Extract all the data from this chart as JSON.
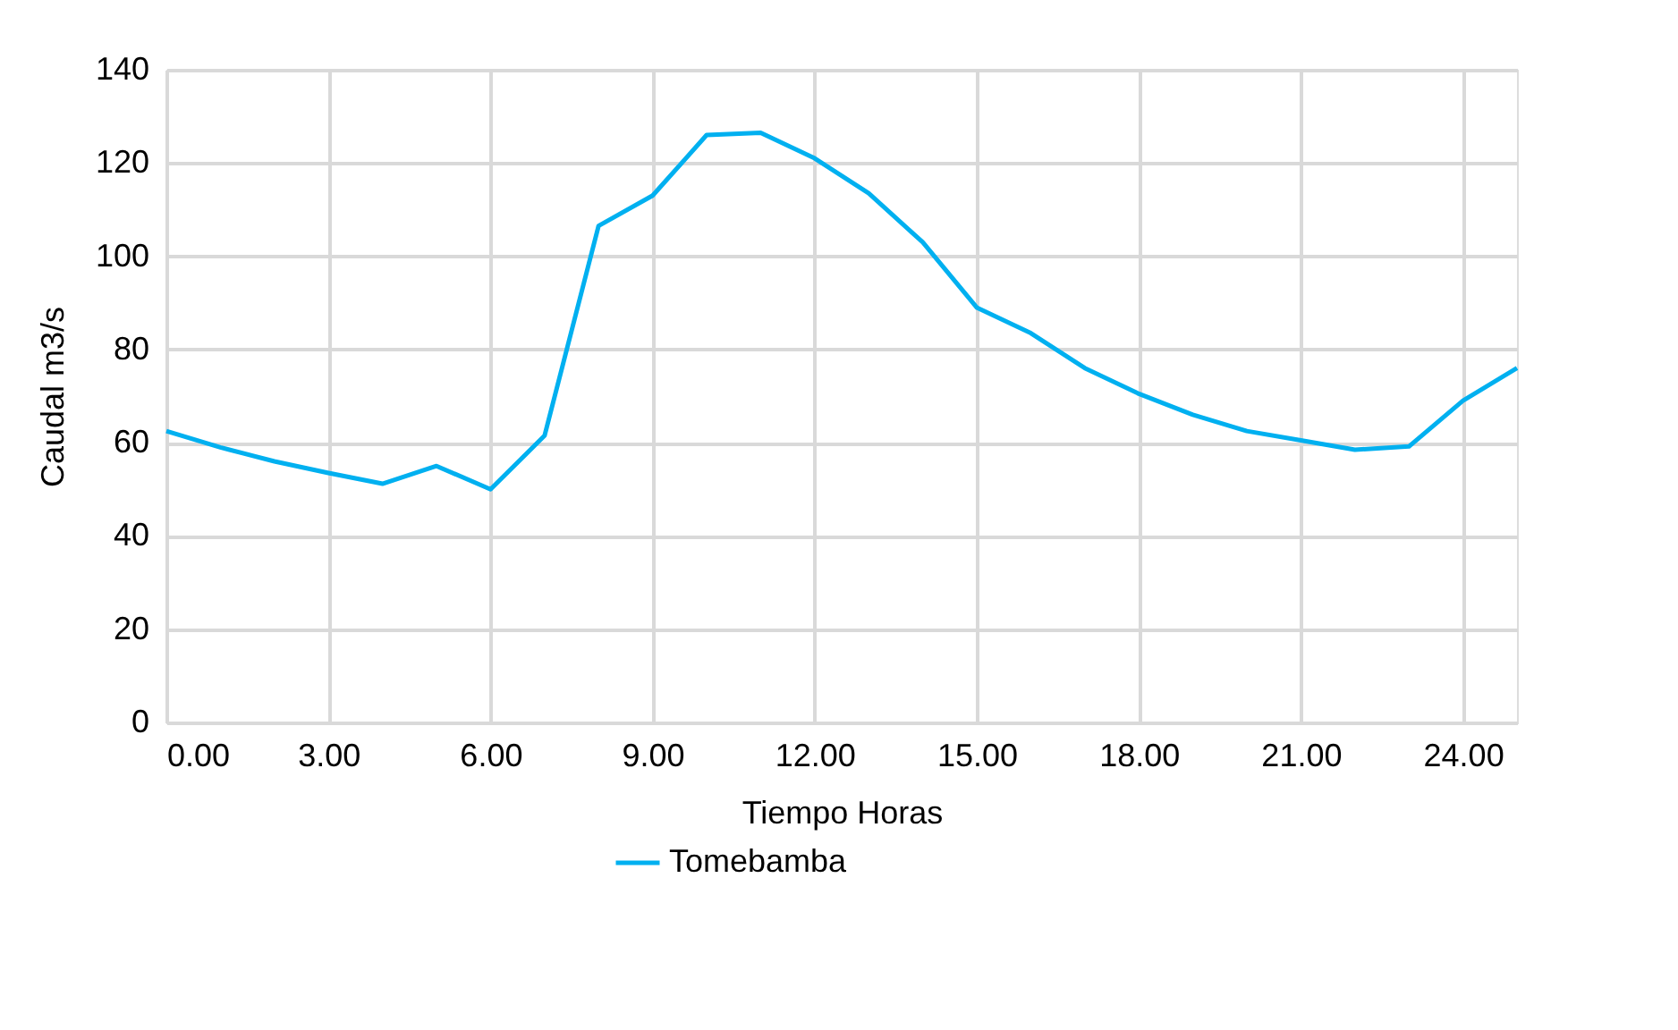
{
  "chart_data": {
    "type": "line",
    "xlabel": "Tiempo Horas",
    "ylabel": "Caudal m3/s",
    "x": [
      0,
      1,
      2,
      3,
      4,
      5,
      6,
      7,
      8,
      9,
      10,
      11,
      12,
      13,
      14,
      15,
      16,
      17,
      18,
      19,
      20,
      21,
      22,
      23,
      24,
      25
    ],
    "series": [
      {
        "name": "Tomebamba",
        "color": "#00b0f0",
        "values": [
          62.5,
          59,
          56,
          53.5,
          51.2,
          55,
          50,
          61.5,
          106.5,
          113,
          126,
          126.5,
          121,
          113.5,
          103,
          89,
          83.5,
          76,
          70.5,
          66,
          62.5,
          60.5,
          58.5,
          59.2,
          69,
          76
        ]
      }
    ],
    "xlim": [
      0,
      25
    ],
    "xticks": [
      {
        "value": 0,
        "label": "0.00"
      },
      {
        "value": 3,
        "label": "3.00"
      },
      {
        "value": 6,
        "label": "6.00"
      },
      {
        "value": 9,
        "label": "9.00"
      },
      {
        "value": 12,
        "label": "12.00"
      },
      {
        "value": 15,
        "label": "15.00"
      },
      {
        "value": 18,
        "label": "18.00"
      },
      {
        "value": 21,
        "label": "21.00"
      },
      {
        "value": 24,
        "label": "24.00"
      }
    ],
    "ylim": [
      0,
      140
    ],
    "yticks": [
      0,
      20,
      40,
      60,
      80,
      100,
      120,
      140
    ],
    "grid": true,
    "legend": "bottom",
    "marker": "none",
    "line_style": "solid"
  }
}
